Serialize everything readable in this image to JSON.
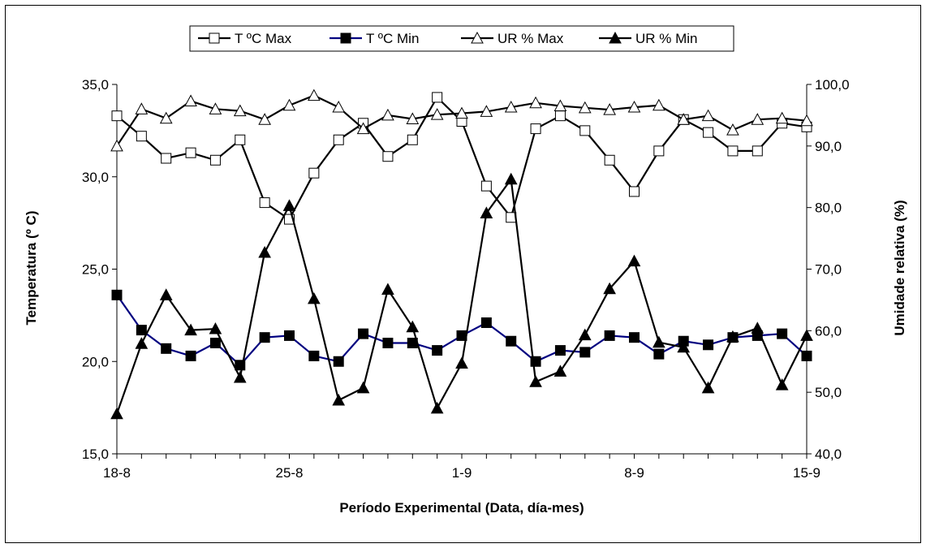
{
  "chart_data": {
    "type": "line",
    "title": "",
    "xlabel": "Período Experimental (Data, día-mes)",
    "ylabel_left": "Temperatura (º C)",
    "ylabel_right": "Umidade relativa (%)",
    "ylim_left": [
      15,
      35
    ],
    "ylim_right": [
      40,
      100
    ],
    "yticks_left": [
      "15,0",
      "20,0",
      "25,0",
      "30,0",
      "35,0"
    ],
    "yticks_right": [
      "40,0",
      "50,0",
      "60,0",
      "70,0",
      "80,0",
      "90,0",
      "100,0"
    ],
    "xtick_labels": [
      {
        "label": "18-8",
        "index": 0
      },
      {
        "label": "25-8",
        "index": 7
      },
      {
        "label": "1-9",
        "index": 14
      },
      {
        "label": "8-9",
        "index": 21
      },
      {
        "label": "15-9",
        "index": 28
      }
    ],
    "x": [
      "18-8",
      "19-8",
      "20-8",
      "21-8",
      "22-8",
      "23-8",
      "24-8",
      "25-8",
      "26-8",
      "27-8",
      "28-8",
      "29-8",
      "30-8",
      "31-8",
      "1-9",
      "2-9",
      "3-9",
      "4-9",
      "5-9",
      "6-9",
      "7-9",
      "8-9",
      "9-9",
      "10-9",
      "11-9",
      "12-9",
      "13-9",
      "14-9",
      "15-9"
    ],
    "grid": false,
    "legend_position": "top",
    "series": [
      {
        "name": "T ºC Max",
        "axis": "left",
        "marker": "square-open",
        "color": "#000000",
        "values": [
          33.3,
          32.2,
          31.0,
          31.3,
          30.9,
          32.0,
          28.6,
          27.7,
          30.2,
          32.0,
          32.9,
          31.1,
          32.0,
          34.3,
          33.0,
          29.5,
          27.8,
          32.6,
          33.3,
          32.5,
          30.9,
          29.2,
          31.4,
          33.1,
          32.4,
          31.4,
          31.4,
          32.9,
          32.7
        ]
      },
      {
        "name": "T ºC Min",
        "axis": "left",
        "marker": "square-filled",
        "color": "#000080",
        "values": [
          23.6,
          21.7,
          20.7,
          20.3,
          21.0,
          19.8,
          21.3,
          21.4,
          20.3,
          20.0,
          21.5,
          21.0,
          21.0,
          20.6,
          21.4,
          22.1,
          21.1,
          20.0,
          20.6,
          20.5,
          21.4,
          21.3,
          20.4,
          21.1,
          20.9,
          21.3,
          21.4,
          21.5,
          20.3
        ]
      },
      {
        "name": "UR % Max",
        "axis": "right",
        "marker": "triangle-open",
        "color": "#000000",
        "values": [
          90.0,
          96.0,
          94.5,
          97.3,
          96.0,
          95.7,
          94.3,
          96.6,
          98.2,
          96.3,
          92.8,
          95.0,
          94.4,
          95.1,
          95.3,
          95.6,
          96.3,
          97.0,
          96.5,
          96.2,
          95.9,
          96.3,
          96.6,
          94.3,
          94.9,
          92.6,
          94.3,
          94.5,
          94.1
        ]
      },
      {
        "name": "UR % Min",
        "axis": "right",
        "marker": "triangle-filled",
        "color": "#000000",
        "values": [
          46.5,
          57.9,
          65.8,
          60.1,
          60.3,
          52.4,
          72.7,
          80.3,
          65.2,
          48.7,
          50.7,
          66.7,
          60.6,
          47.4,
          54.7,
          79.1,
          84.6,
          51.7,
          53.4,
          59.3,
          66.8,
          71.3,
          58.1,
          57.3,
          50.7,
          59.0,
          60.4,
          51.2,
          59.2
        ]
      }
    ]
  }
}
